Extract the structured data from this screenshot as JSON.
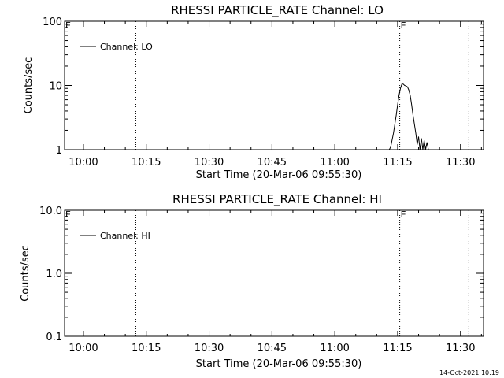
{
  "footer": {
    "timestamp": "14-Oct-2021 10:19"
  },
  "chart_data": [
    {
      "type": "line",
      "title": "RHESSI PARTICLE_RATE Channel: LO",
      "xlabel": "Start Time (20-Mar-06 09:55:30)",
      "ylabel": "Counts/sec",
      "yscale": "log",
      "ylim": [
        1,
        100
      ],
      "xlim": [
        "09:55:30",
        "11:35:30"
      ],
      "x_ticks": [
        "10:00",
        "10:15",
        "10:30",
        "10:45",
        "11:00",
        "11:15",
        "11:30"
      ],
      "y_ticks": [
        "1",
        "10",
        "100"
      ],
      "legend": {
        "placement": "top-left",
        "entries": [
          "Channel: LO"
        ]
      },
      "markers": [
        {
          "time": "10:12:30",
          "style": "dotted",
          "label": ""
        },
        {
          "time": "11:15:30",
          "style": "dotted",
          "label": "E"
        },
        {
          "time": "11:32:00",
          "style": "dotted",
          "label": ""
        }
      ],
      "edge_labels": [
        "E"
      ],
      "series": [
        {
          "name": "Channel: LO",
          "x": [
            "11:13:00",
            "11:13:20",
            "11:13:40",
            "11:14:00",
            "11:14:20",
            "11:14:40",
            "11:15:00",
            "11:15:20",
            "11:15:40",
            "11:16:00",
            "11:16:20",
            "11:16:40",
            "11:17:00",
            "11:17:20",
            "11:17:40",
            "11:18:00",
            "11:18:20",
            "11:18:40",
            "11:19:00",
            "11:19:20",
            "11:19:40",
            "11:20:00",
            "11:20:20",
            "11:20:40",
            "11:21:00",
            "11:21:20",
            "11:21:40",
            "11:22:00",
            "11:22:20"
          ],
          "y": [
            1,
            1.1,
            1.4,
            1.8,
            2.5,
            3.5,
            5.0,
            7.0,
            9.0,
            10.5,
            10.5,
            10.0,
            9.8,
            9.5,
            8.5,
            7.0,
            5.0,
            3.5,
            2.5,
            1.8,
            1.2,
            1.6,
            1,
            1.5,
            1,
            1.4,
            1,
            1.3,
            1
          ]
        }
      ]
    },
    {
      "type": "line",
      "title": "RHESSI PARTICLE_RATE Channel: HI",
      "xlabel": "Start Time (20-Mar-06 09:55:30)",
      "ylabel": "Counts/sec",
      "yscale": "log",
      "ylim": [
        0.1,
        10
      ],
      "xlim": [
        "09:55:30",
        "11:35:30"
      ],
      "x_ticks": [
        "10:00",
        "10:15",
        "10:30",
        "10:45",
        "11:00",
        "11:15",
        "11:30"
      ],
      "y_ticks": [
        "0.1",
        "1.0",
        "10.0"
      ],
      "legend": {
        "placement": "top-left",
        "entries": [
          "Channel: HI"
        ]
      },
      "markers": [
        {
          "time": "10:12:30",
          "style": "dotted",
          "label": ""
        },
        {
          "time": "11:15:30",
          "style": "dotted",
          "label": "E"
        },
        {
          "time": "11:32:00",
          "style": "dotted",
          "label": ""
        }
      ],
      "edge_labels": [
        "E"
      ],
      "series": [
        {
          "name": "Channel: HI",
          "x": [],
          "y": []
        }
      ]
    }
  ]
}
